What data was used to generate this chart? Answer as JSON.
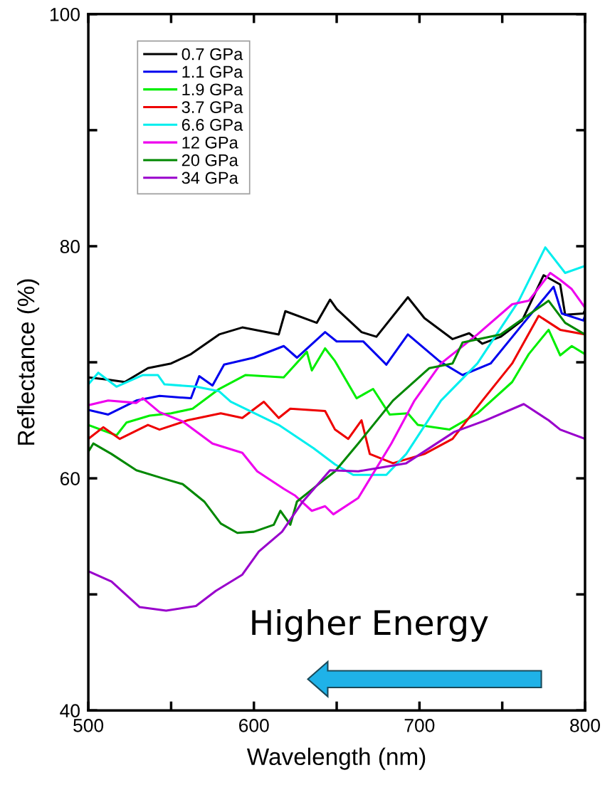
{
  "chart_data": {
    "type": "line",
    "xlabel": "Wavelength (nm)",
    "ylabel": "Reflectance (%)",
    "xlim": [
      500,
      800
    ],
    "ylim": [
      40,
      100
    ],
    "xticks": [
      500,
      {
        "value": 550,
        "label": null
      },
      600,
      {
        "value": 650,
        "label": null
      },
      700,
      {
        "value": 750,
        "label": null
      },
      800
    ],
    "yticks": [
      40,
      {
        "value": 50,
        "label": null
      },
      60,
      {
        "value": 70,
        "label": null
      },
      80,
      {
        "value": 90,
        "label": null
      },
      100
    ],
    "grid": false,
    "legend": "top left",
    "marker": "none",
    "line_style": "solid",
    "annotations": [
      "Higher Energy"
    ],
    "series": [
      {
        "name": "0.7 GPa",
        "color": "#000000",
        "x": [
          500,
          512,
          522,
          536,
          550,
          562,
          579,
          593,
          615,
          619,
          638,
          646,
          650,
          665,
          674,
          693,
          703,
          720,
          730,
          738,
          749,
          762,
          775,
          785,
          788,
          799,
          800
        ],
        "values": [
          68.7,
          68.5,
          68.3,
          69.5,
          69.9,
          70.7,
          72.4,
          73.0,
          72.4,
          74.4,
          73.4,
          75.4,
          74.6,
          72.6,
          72.2,
          75.6,
          73.8,
          72.0,
          72.5,
          71.6,
          72.2,
          73.6,
          77.5,
          76.7,
          74.1,
          74.2,
          74.5
        ]
      },
      {
        "name": "1.1 GPa",
        "color": "#0000ee",
        "x": [
          500,
          512,
          529,
          543,
          562,
          567,
          575,
          582,
          600,
          618,
          626,
          643,
          650,
          666,
          680,
          693,
          712,
          726,
          743,
          763,
          781,
          786,
          799,
          800
        ],
        "values": [
          65.9,
          65.5,
          66.7,
          67.1,
          66.9,
          68.8,
          68.0,
          69.8,
          70.4,
          71.4,
          70.4,
          72.6,
          71.8,
          71.8,
          69.8,
          72.4,
          70.1,
          68.9,
          69.9,
          73.4,
          76.5,
          74.2,
          73.6,
          74.0
        ]
      },
      {
        "name": "1.9 GPa",
        "color": "#00ee00",
        "x": [
          500,
          517,
          523,
          537,
          550,
          563,
          579,
          595,
          618,
          632,
          635,
          643,
          649,
          662,
          672,
          682,
          693,
          699,
          718,
          735,
          756,
          766,
          778,
          785,
          792,
          800
        ],
        "values": [
          64.6,
          63.7,
          64.8,
          65.4,
          65.6,
          66.0,
          67.7,
          68.9,
          68.7,
          70.9,
          69.3,
          71.2,
          70.1,
          66.9,
          67.7,
          65.5,
          65.6,
          64.6,
          64.2,
          65.6,
          68.3,
          70.7,
          72.8,
          70.6,
          71.4,
          70.7
        ]
      },
      {
        "name": "3.7 GPa",
        "color": "#ee0000",
        "x": [
          500,
          509,
          519,
          536,
          543,
          560,
          580,
          593,
          606,
          615,
          622,
          643,
          649,
          657,
          665,
          670,
          684,
          703,
          720,
          738,
          756,
          772,
          785,
          800
        ],
        "values": [
          63.4,
          64.4,
          63.4,
          64.6,
          64.2,
          65.0,
          65.6,
          65.2,
          66.6,
          65.2,
          66.0,
          65.8,
          64.2,
          63.4,
          65.0,
          62.1,
          61.3,
          62.1,
          63.4,
          66.7,
          69.9,
          74.0,
          72.8,
          72.4
        ]
      },
      {
        "name": "6.6 GPa",
        "color": "#00eeee",
        "x": [
          500,
          506,
          517,
          533,
          542,
          546,
          565,
          579,
          586,
          615,
          636,
          649,
          660,
          680,
          692,
          713,
          735,
          760,
          776,
          788,
          800
        ],
        "values": [
          68.1,
          69.1,
          67.9,
          68.9,
          68.9,
          68.1,
          67.9,
          67.5,
          66.6,
          64.6,
          62.6,
          61.2,
          60.3,
          60.3,
          62.1,
          66.7,
          69.9,
          75.3,
          79.9,
          77.7,
          78.3
        ]
      },
      {
        "name": "12 GPa",
        "color": "#ee00ee",
        "x": [
          500,
          512,
          529,
          533,
          543,
          557,
          575,
          593,
          602,
          618,
          625,
          635,
          643,
          648,
          663,
          683,
          697,
          713,
          735,
          756,
          766,
          779,
          785,
          792,
          800
        ],
        "values": [
          66.3,
          66.7,
          66.5,
          66.9,
          65.7,
          64.9,
          63.0,
          62.2,
          60.6,
          59.1,
          58.5,
          57.2,
          57.6,
          56.9,
          58.3,
          63.0,
          66.7,
          69.9,
          72.4,
          75.0,
          75.3,
          77.7,
          77.1,
          76.3,
          74.7
        ]
      },
      {
        "name": "20 GPa",
        "color": "#008800",
        "x": [
          500,
          503,
          514,
          529,
          545,
          557,
          570,
          580,
          590,
          600,
          612,
          616,
          622,
          626,
          640,
          649,
          663,
          684,
          706,
          720,
          726,
          749,
          763,
          778,
          788,
          800
        ],
        "values": [
          62.3,
          63.0,
          62.1,
          60.7,
          60.0,
          59.5,
          58.0,
          56.1,
          55.3,
          55.4,
          56.0,
          57.2,
          56.0,
          58.0,
          59.6,
          60.6,
          63.0,
          66.7,
          69.5,
          69.9,
          71.7,
          72.4,
          73.8,
          75.3,
          73.4,
          72.4
        ]
      },
      {
        "name": "34 GPa",
        "color": "#9900cc",
        "x": [
          500,
          514,
          531,
          547,
          565,
          577,
          593,
          603,
          617,
          629,
          646,
          663,
          692,
          721,
          740,
          763,
          778,
          785,
          800
        ],
        "values": [
          52.0,
          51.1,
          48.9,
          48.6,
          49.0,
          50.3,
          51.7,
          53.7,
          55.4,
          57.9,
          60.7,
          60.6,
          61.3,
          64.0,
          65.0,
          66.4,
          65.0,
          64.2,
          63.4
        ]
      }
    ]
  }
}
